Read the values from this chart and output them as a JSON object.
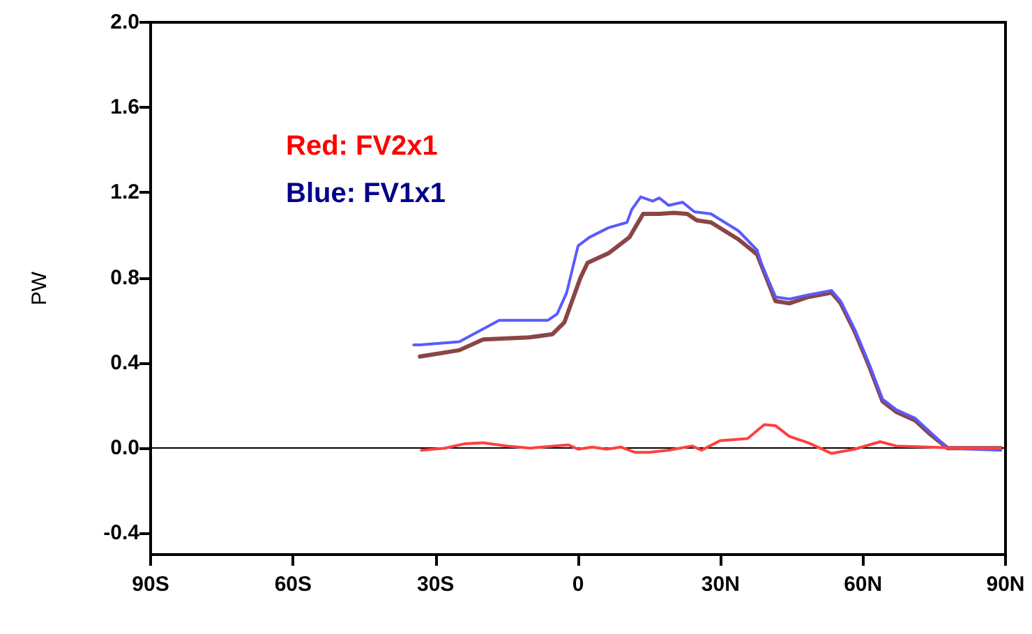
{
  "chart_data": {
    "type": "line",
    "ylabel": "PW",
    "annotations": [
      "Red: FV2x1",
      "Blue: FV1x1"
    ],
    "xlim": [
      -90,
      90
    ],
    "xticks": [
      {
        "value": -90,
        "label": "90S"
      },
      {
        "value": -60,
        "label": "60S"
      },
      {
        "value": -30,
        "label": "30S"
      },
      {
        "value": 0,
        "label": "0"
      },
      {
        "value": 30,
        "label": "30N"
      },
      {
        "value": 60,
        "label": "60N"
      },
      {
        "value": 90,
        "label": "90N"
      }
    ],
    "ylim": [
      -0.5,
      2.0
    ],
    "yticks": [
      {
        "value": -0.4,
        "label": "-0.4"
      },
      {
        "value": 0,
        "label": "0.0"
      },
      {
        "value": 0.4,
        "label": "0.4"
      },
      {
        "value": 0.8,
        "label": "0.8"
      },
      {
        "value": 1.2,
        "label": "1.2"
      },
      {
        "value": 1.6,
        "label": "1.6"
      },
      {
        "value": 2.0,
        "label": "2.0"
      }
    ],
    "marker": "none",
    "line_style": "solid",
    "ref_lines": [
      {
        "axis": "y",
        "value": 0,
        "label": null,
        "color": "#000000"
      }
    ],
    "series": [
      {
        "color": "#8b4545",
        "x": [
          -33.3,
          -25,
          -20,
          -10.3,
          -5.4,
          -2.9,
          0.5,
          2,
          6.4,
          10.8,
          13.7,
          17.1,
          20.1,
          23,
          25,
          28,
          33.8,
          37.7,
          41.6,
          44.5,
          48.5,
          53.4,
          55.3,
          58.2,
          61.2,
          64.1,
          67,
          71,
          73.9,
          77.8,
          89
        ],
        "values": [
          0.43,
          0.46,
          0.51,
          0.52,
          0.535,
          0.59,
          0.8,
          0.87,
          0.915,
          0.99,
          1.1,
          1.1,
          1.105,
          1.1,
          1.07,
          1.06,
          0.98,
          0.91,
          0.69,
          0.68,
          0.71,
          0.73,
          0.68,
          0.55,
          0.39,
          0.22,
          0.17,
          0.13,
          0.07,
          0.0,
          0.0
        ]
      },
      {
        "color": "#5a5aff",
        "x": [
          -34.6,
          -33.3,
          -25,
          -16.6,
          -6.4,
          -4.4,
          -2.4,
          0,
          2.4,
          6.4,
          10.3,
          11.3,
          13.2,
          15.7,
          17.1,
          19.1,
          22,
          24.5,
          28,
          33.8,
          37.7,
          38.7,
          41.6,
          44.5,
          48.5,
          53.4,
          55.3,
          58.2,
          61.2,
          64.1,
          67,
          71,
          73.9,
          77.8,
          89
        ],
        "values": [
          0.485,
          0.485,
          0.5,
          0.6,
          0.6,
          0.63,
          0.73,
          0.95,
          0.99,
          1.035,
          1.06,
          1.12,
          1.18,
          1.16,
          1.175,
          1.14,
          1.155,
          1.11,
          1.1,
          1.02,
          0.93,
          0.86,
          0.71,
          0.7,
          0.72,
          0.74,
          0.69,
          0.56,
          0.4,
          0.23,
          0.18,
          0.14,
          0.08,
          0.0,
          -0.01
        ]
      },
      {
        "color": "#ff4040",
        "x": [
          -33,
          -28,
          -24,
          -20,
          -15,
          -10,
          -5,
          -2,
          0,
          3,
          6,
          9,
          12,
          15,
          19,
          24,
          26,
          29.9,
          35.7,
          39.2,
          41.6,
          44.5,
          48.5,
          53.4,
          58.2,
          63.6,
          67,
          73.9,
          80,
          89
        ],
        "values": [
          -0.01,
          0.0,
          0.02,
          0.025,
          0.01,
          0.0,
          0.01,
          0.015,
          -0.005,
          0.005,
          -0.005,
          0.005,
          -0.02,
          -0.02,
          -0.01,
          0.01,
          -0.01,
          0.035,
          0.045,
          0.11,
          0.105,
          0.055,
          0.025,
          -0.025,
          -0.005,
          0.03,
          0.01,
          0.005,
          0.0,
          0.0
        ]
      }
    ]
  }
}
